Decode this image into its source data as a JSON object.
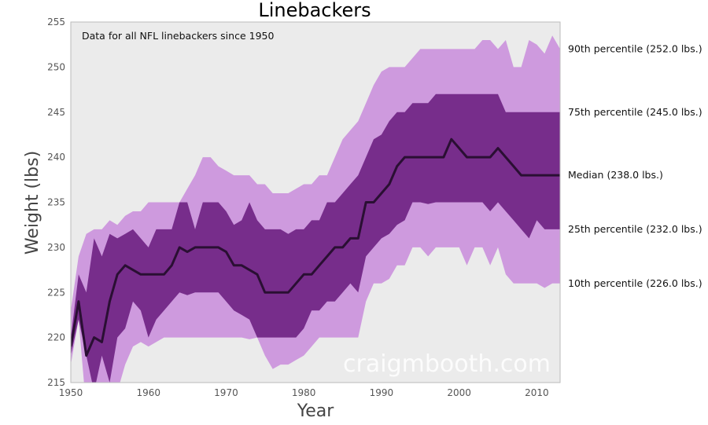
{
  "chart_data": {
    "type": "area",
    "title": "Linebackers",
    "xlabel": "Year",
    "ylabel": "Weight (lbs)",
    "xlim": [
      1950,
      2013
    ],
    "ylim": [
      215,
      255
    ],
    "xticks": [
      "1950",
      "1960",
      "1970",
      "1980",
      "1990",
      "2000",
      "2010"
    ],
    "yticks": [
      "215",
      "220",
      "225",
      "230",
      "235",
      "240",
      "245",
      "250",
      "255"
    ],
    "annotation": "Data for all NFL linebackers since 1950",
    "watermark": "craigmbooth.com",
    "grid": false,
    "background": "#ebebeb",
    "colors": {
      "outer_band": "#ce9ade",
      "inner_band": "#772d8b",
      "median_line": "#2a0f33"
    },
    "x": [
      1950,
      1951,
      1952,
      1953,
      1954,
      1955,
      1956,
      1957,
      1958,
      1959,
      1960,
      1961,
      1962,
      1963,
      1964,
      1965,
      1966,
      1967,
      1968,
      1969,
      1970,
      1971,
      1972,
      1973,
      1974,
      1975,
      1976,
      1977,
      1978,
      1979,
      1980,
      1981,
      1982,
      1983,
      1984,
      1985,
      1986,
      1987,
      1988,
      1989,
      1990,
      1991,
      1992,
      1993,
      1994,
      1995,
      1996,
      1997,
      1998,
      1999,
      2000,
      2001,
      2002,
      2003,
      2004,
      2005,
      2006,
      2007,
      2008,
      2009,
      2010,
      2011,
      2012,
      2013
    ],
    "series": [
      {
        "name": "10th percentile",
        "values": [
          217,
          222,
          212,
          214,
          213,
          212,
          214,
          217,
          219,
          219.5,
          219,
          219.5,
          220,
          220,
          220,
          220,
          220,
          220,
          220,
          220,
          220,
          220,
          220,
          219.8,
          220,
          218,
          216.5,
          217,
          217,
          217.5,
          218,
          219,
          220,
          220,
          220,
          220,
          220,
          220,
          224,
          226,
          226,
          226.5,
          228,
          228,
          230,
          230,
          229,
          230,
          230,
          230,
          230,
          228,
          230,
          230,
          228,
          230,
          227,
          226,
          226,
          226,
          226,
          225.5,
          226,
          226
        ]
      },
      {
        "name": "25th percentile",
        "values": [
          218,
          222,
          218,
          214,
          218,
          215,
          220,
          221,
          224,
          223,
          220,
          222,
          223,
          224,
          225,
          224.7,
          225,
          225,
          225,
          225,
          224,
          223,
          222.5,
          222,
          220,
          220,
          220,
          220,
          220,
          220,
          221,
          223,
          223,
          224,
          224,
          225,
          226,
          225,
          229,
          230,
          231,
          231.5,
          232.5,
          233,
          235,
          235,
          234.8,
          235,
          235,
          235,
          235,
          235,
          235,
          235,
          234,
          235,
          234,
          233,
          232,
          231,
          233,
          232,
          232,
          232
        ]
      },
      {
        "name": "Median",
        "values": [
          219,
          224,
          218,
          220,
          219.5,
          224,
          227,
          228,
          227.5,
          227,
          227,
          227,
          227,
          228,
          230,
          229.5,
          230,
          230,
          230,
          230,
          229.5,
          228,
          228,
          227.5,
          227,
          225,
          225,
          225,
          225,
          226,
          227,
          227,
          228,
          229,
          230,
          230,
          231,
          231,
          235,
          235,
          236,
          237,
          239,
          240,
          240,
          240,
          240,
          240,
          240,
          242,
          241,
          240,
          240,
          240,
          240,
          241,
          240,
          239,
          238,
          238,
          238,
          238,
          238,
          238
        ]
      },
      {
        "name": "75th percentile",
        "values": [
          220,
          227,
          225,
          231,
          229,
          231.5,
          231,
          231.5,
          232,
          231,
          230,
          232,
          232,
          232,
          235,
          235,
          232,
          235,
          235,
          235,
          234,
          232.5,
          233,
          235,
          233,
          232,
          232,
          232,
          231.5,
          232,
          232,
          233,
          233,
          235,
          235,
          236,
          237,
          238,
          240,
          242,
          242.5,
          244,
          245,
          245,
          246,
          246,
          246,
          247,
          247,
          247,
          247,
          247,
          247,
          247,
          247,
          247,
          245,
          245,
          245,
          245,
          245,
          245,
          245,
          245
        ]
      },
      {
        "name": "90th percentile",
        "values": [
          223,
          229,
          231.5,
          232,
          232,
          233,
          232.5,
          233.5,
          234,
          234,
          235,
          235,
          235,
          235,
          235,
          236.5,
          238,
          240,
          240,
          239,
          238.5,
          238,
          238,
          238,
          237,
          237,
          236,
          236,
          236,
          236.5,
          237,
          237,
          238,
          238,
          240,
          242,
          243,
          244,
          246,
          248,
          249.5,
          250,
          250,
          250,
          251,
          252,
          252,
          252,
          252,
          252,
          252,
          252,
          252,
          253,
          253,
          252,
          253,
          250,
          250,
          253,
          252.5,
          251.5,
          253.5,
          252
        ]
      }
    ],
    "right_labels": [
      {
        "key": "p90",
        "text": "90th percentile (252.0 lbs.)"
      },
      {
        "key": "p75",
        "text": "75th percentile (245.0 lbs.)"
      },
      {
        "key": "p50",
        "text": "Median (238.0 lbs.)"
      },
      {
        "key": "p25",
        "text": "25th percentile (232.0 lbs.)"
      },
      {
        "key": "p10",
        "text": "10th percentile (226.0 lbs.)"
      }
    ]
  }
}
